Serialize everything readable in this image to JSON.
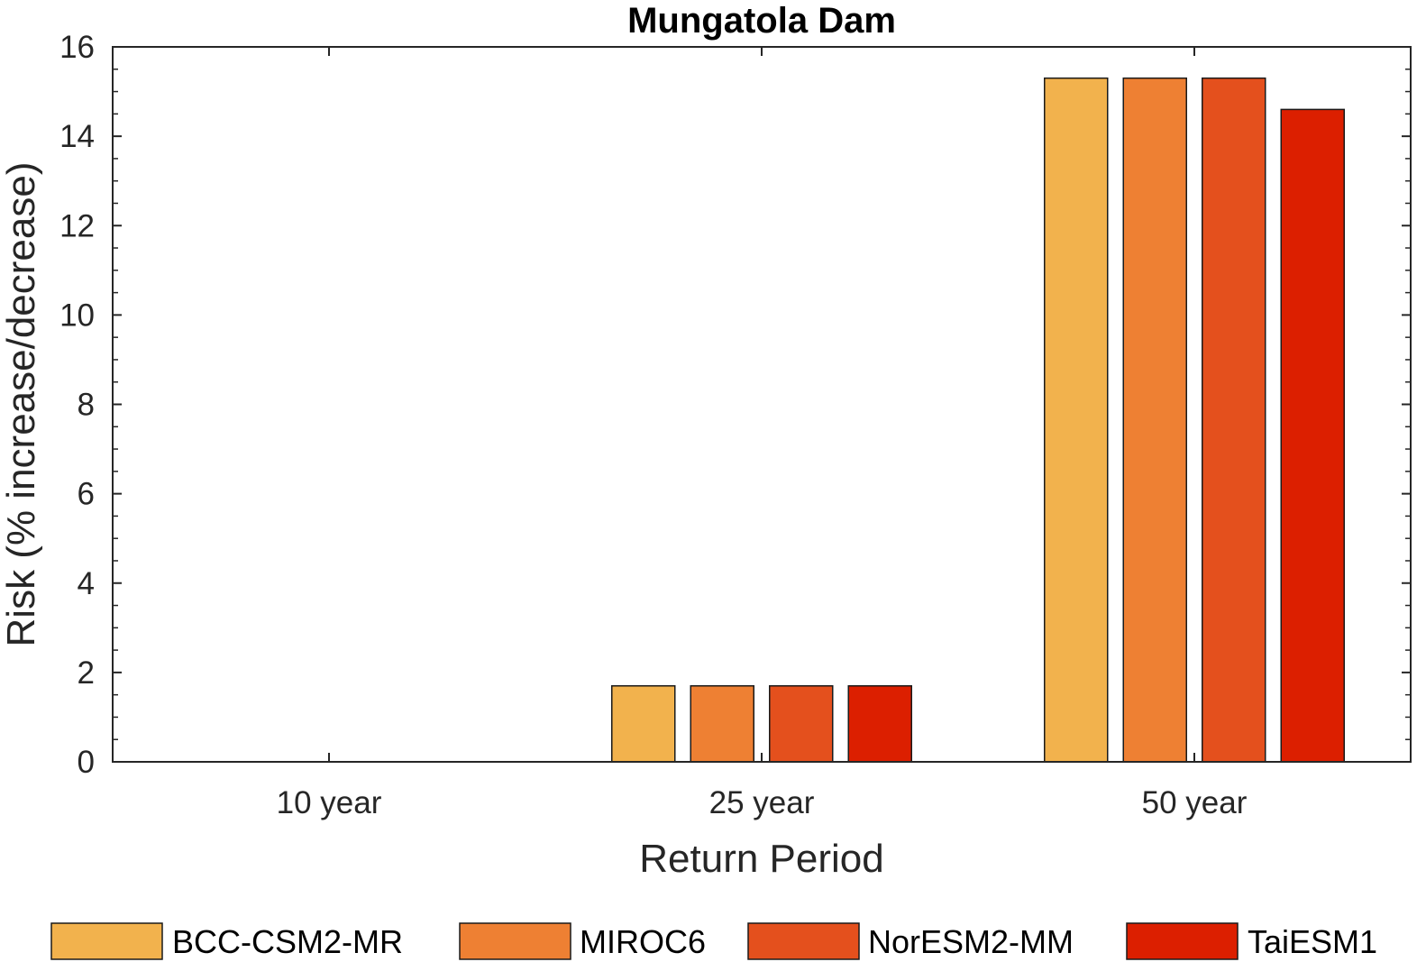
{
  "chart_data": {
    "type": "bar",
    "title": "Mungatola Dam",
    "xlabel": "Return Period",
    "ylabel": "Risk (% increase/decrease)",
    "categories": [
      "10 year",
      "25 year",
      "50 year"
    ],
    "ylim": [
      0,
      16
    ],
    "yticks": [
      0,
      2,
      4,
      6,
      8,
      10,
      12,
      14,
      16
    ],
    "grid": false,
    "legend_position": "bottom",
    "series": [
      {
        "name": "BCC-CSM2-MR",
        "color": "#F2B24D",
        "values": [
          0,
          1.7,
          15.3
        ]
      },
      {
        "name": "MIROC6",
        "color": "#EE8033",
        "values": [
          0,
          1.7,
          15.3
        ]
      },
      {
        "name": "NorESM2-MM",
        "color": "#E4501D",
        "values": [
          0,
          1.7,
          15.3
        ]
      },
      {
        "name": "TaiESM1",
        "color": "#DC1F00",
        "values": [
          0,
          1.7,
          14.6
        ]
      }
    ]
  }
}
